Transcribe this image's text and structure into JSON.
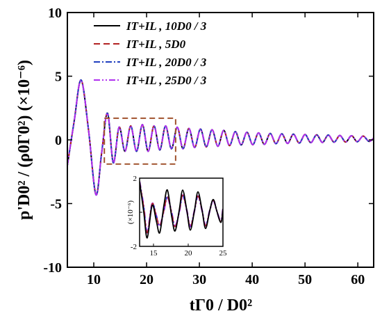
{
  "chart_data": {
    "type": "line",
    "xlabel": "tΓ0 / D0²",
    "ylabel": "p'D0² / (ρ0Γ0²) (×10⁻⁶)",
    "xlim": [
      5,
      63
    ],
    "ylim": [
      -10,
      10
    ],
    "x_ticks": [
      10,
      20,
      30,
      40,
      50,
      60
    ],
    "x_tick_labels": [
      "10",
      "20",
      "30",
      "40",
      "50",
      "60"
    ],
    "y_ticks": [
      -10,
      -5,
      0,
      5,
      10
    ],
    "y_tick_labels": [
      "-10",
      "-5",
      "0",
      "5",
      "10"
    ],
    "legend_position": "top-center",
    "series": [
      {
        "name": "IT+IL , 10D0 / 3",
        "color": "#000000",
        "dash": "solid"
      },
      {
        "name": "IT+IL , 5D0",
        "color": "#b22222",
        "dash": "dash"
      },
      {
        "name": "IT+IL , 20D0 / 3",
        "color": "#1f3fbf",
        "dash": "dashdot"
      },
      {
        "name": "IT+IL , 25D0 / 3",
        "color": "#b030f0",
        "dash": "dashdotdot"
      }
    ],
    "wave": {
      "x": [
        5,
        6.3,
        7.6,
        9,
        10.4,
        11.5,
        12.6,
        13.7,
        14.8,
        15.9,
        17,
        18.1,
        19.2,
        20.3,
        21.4,
        22.5,
        23.6,
        24.7,
        25.8,
        26.9,
        28,
        29.1,
        30.2,
        31.3,
        32.4,
        33.5,
        34.6,
        35.7,
        36.8,
        37.9,
        39,
        40.1,
        41.2,
        42.3,
        43.4,
        44.5,
        45.6,
        46.7,
        47.8,
        48.9,
        50,
        51.1,
        52.2,
        53.3,
        54.4,
        55.5,
        56.6,
        57.7,
        58.8,
        59.9,
        61,
        62.1,
        63
      ],
      "y": [
        -2,
        1.5,
        4.7,
        0.8,
        -4.3,
        -1,
        2.1,
        -1.8,
        1,
        -0.9,
        1.1,
        -0.9,
        1.2,
        -0.9,
        1.1,
        -0.8,
        1.1,
        -0.7,
        1,
        -0.7,
        0.9,
        -0.6,
        0.85,
        -0.55,
        0.8,
        -0.5,
        0.75,
        -0.45,
        0.65,
        -0.4,
        0.6,
        -0.38,
        0.55,
        -0.35,
        0.5,
        -0.3,
        0.48,
        -0.28,
        0.45,
        -0.25,
        0.42,
        -0.22,
        0.4,
        -0.2,
        0.38,
        -0.18,
        0.35,
        -0.17,
        0.33,
        -0.15,
        0.3,
        -0.12,
        0.15
      ]
    },
    "highlight_box": {
      "x": [
        12,
        25.5
      ],
      "y": [
        -1.9,
        1.7
      ],
      "color": "#a0522d"
    },
    "inset": {
      "xlim": [
        13,
        25
      ],
      "ylim": [
        -2,
        2
      ],
      "x_ticks": [
        15,
        20,
        25
      ],
      "x_tick_labels": [
        "15",
        "20",
        "25"
      ],
      "y_ticks": [
        -2,
        0,
        2
      ],
      "y_tick_labels": [
        "-2",
        "0",
        "2"
      ],
      "ylabel": "(×10⁻⁶)",
      "curve_x": [
        13,
        13.6,
        14.1,
        14.8,
        15.4,
        15.9,
        16.5,
        17,
        17.6,
        18.1,
        18.7,
        19.2,
        19.8,
        20.3,
        20.9,
        21.4,
        22,
        22.5,
        23.1,
        23.6,
        24.1,
        24.7,
        25
      ],
      "reference_y": [
        1.8,
        0,
        -1.5,
        0.4,
        -0.5,
        -1.2,
        0.4,
        1.3,
        -0.2,
        -1.1,
        0.1,
        1.3,
        0.1,
        -1.05,
        0.1,
        1.2,
        0.1,
        -0.95,
        0.1,
        0.75,
        0.1,
        -0.6,
        0.2
      ],
      "smooth_y": [
        1.8,
        0.3,
        -1.2,
        0.5,
        -0.2,
        -0.8,
        0.1,
        0.9,
        0,
        -0.85,
        0,
        1.0,
        0.1,
        -0.85,
        0.1,
        0.95,
        0.1,
        -0.8,
        0.1,
        0.7,
        0.1,
        -0.55,
        0.2
      ]
    }
  }
}
